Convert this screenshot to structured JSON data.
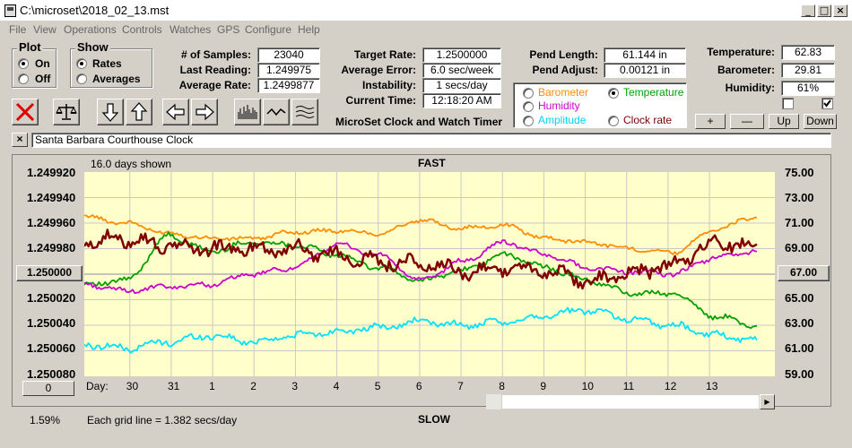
{
  "window": {
    "title": "C:\\microset\\2018_02_13.mst"
  },
  "menu": [
    "File",
    "View",
    "Operations",
    "Controls",
    "Watches",
    "GPS",
    "Configure",
    "Help"
  ],
  "plot_group": {
    "title": "Plot",
    "options": [
      {
        "label": "On",
        "selected": true
      },
      {
        "label": "Off",
        "selected": false
      }
    ]
  },
  "show_group": {
    "title": "Show",
    "options": [
      {
        "label": "Rates",
        "selected": true
      },
      {
        "label": "Averages",
        "selected": false
      }
    ]
  },
  "stats": [
    {
      "label": "# of Samples:",
      "value": "23040"
    },
    {
      "label": "Last Reading:",
      "value": "1.249975"
    },
    {
      "label": "Average Rate:",
      "value": "1.2499877"
    }
  ],
  "rates": [
    {
      "label": "Target Rate:",
      "value": "1.2500000"
    },
    {
      "label": "Average Error:",
      "value": "6.0 sec/week"
    },
    {
      "label": "Instability:",
      "value": "1 secs/day"
    },
    {
      "label": "Current Time:",
      "value": "12:18:20 AM"
    }
  ],
  "app_caption": "MicroSet Clock and Watch Timer",
  "pend": [
    {
      "label": "Pend Length:",
      "value": "61.144 in"
    },
    {
      "label": "Pend Adjust:",
      "value": "0.00121 in"
    }
  ],
  "legend": [
    {
      "label": "Barometer",
      "color": "#ff8c00",
      "selected": false
    },
    {
      "label": "Temperature",
      "color": "#00a000",
      "selected": true
    },
    {
      "label": "Humidity",
      "color": "#cc00cc",
      "selected": false
    },
    {
      "label": "Amplitude",
      "color": "#00e0ff",
      "selected": false
    },
    {
      "label": "Clock rate",
      "color": "#800000",
      "selected": false
    }
  ],
  "env": [
    {
      "label": "Temperature:",
      "value": "62.83"
    },
    {
      "label": "Barometer:",
      "value": "29.81"
    },
    {
      "label": "Humidity:",
      "value": "61%"
    }
  ],
  "checkboxes": [
    {
      "checked": false
    },
    {
      "checked": true
    }
  ],
  "adjust_buttons": [
    "+",
    "—",
    "Up",
    "Down"
  ],
  "clock_name": "Santa Barbara Courthouse Clock",
  "chart_info": {
    "days_shown": "16.0 days shown",
    "top_label": "FAST",
    "bottom_label": "SLOW",
    "grid_note": "Each grid line = 1.382 secs/day",
    "percent": "1.59%",
    "day_label": "Day:"
  },
  "center_left_value": "1.250000",
  "center_right_value": "67.00",
  "offset_value": "0",
  "icons": [
    "close-x-icon",
    "balance-scale-icon",
    "arrow-down-icon",
    "arrow-up-icon",
    "arrow-left-icon",
    "arrow-right-icon",
    "bar-chart-icon",
    "wave-icon",
    "multi-wave-icon"
  ],
  "chart_data": {
    "type": "line",
    "x": [
      0,
      1,
      2,
      3,
      4,
      5,
      6,
      7,
      8,
      9,
      10,
      11,
      12,
      13,
      14,
      15,
      16
    ],
    "xtick_labels": [
      "30",
      "31",
      "1",
      "2",
      "3",
      "4",
      "5",
      "6",
      "7",
      "8",
      "9",
      "10",
      "11",
      "12",
      "13"
    ],
    "y_left_ticks": [
      "1.249920",
      "1.249940",
      "1.249960",
      "1.249980",
      "1.250000",
      "1.250020",
      "1.250040",
      "1.250060",
      "1.250080"
    ],
    "y_right_ticks": [
      "75.00",
      "73.00",
      "71.00",
      "69.00",
      "67.00",
      "65.00",
      "63.00",
      "61.00",
      "59.00"
    ],
    "ylim_right": [
      59,
      75
    ],
    "series": [
      {
        "name": "Barometer",
        "color": "#ff8c00",
        "values": [
          71.5,
          71.0,
          70.2,
          69.8,
          69.8,
          70.3,
          70.4,
          70.2,
          71.2,
          70.6,
          70.8,
          69.8,
          69.5,
          69.0,
          68.7,
          70.5,
          71.5
        ]
      },
      {
        "name": "Temperature",
        "color": "#00a000",
        "values": [
          66.2,
          66.5,
          70.0,
          68.8,
          69.5,
          69.3,
          68.5,
          67.5,
          66.5,
          67.3,
          68.5,
          67.5,
          66.5,
          65.5,
          65.5,
          63.7,
          63.0
        ]
      },
      {
        "name": "Humidity",
        "color": "#cc00cc",
        "values": [
          66.2,
          65.7,
          66.0,
          66.2,
          67.0,
          67.5,
          69.3,
          68.5,
          66.5,
          68.0,
          69.5,
          68.5,
          67.5,
          67.2,
          67.0,
          68.3,
          68.8
        ]
      },
      {
        "name": "Amplitude",
        "color": "#00e0ff",
        "values": [
          61.5,
          61.2,
          61.7,
          62.2,
          61.7,
          62.2,
          62.5,
          62.8,
          63.3,
          63.0,
          63.2,
          63.8,
          64.2,
          63.5,
          63.0,
          62.2,
          61.8
        ]
      },
      {
        "name": "Clock rate",
        "color": "#800000",
        "values": [
          69.5,
          69.8,
          69.2,
          69.0,
          69.0,
          69.0,
          68.5,
          68.0,
          67.8,
          67.2,
          67.5,
          67.2,
          66.5,
          67.0,
          67.7,
          69.5,
          69.2
        ]
      }
    ]
  }
}
